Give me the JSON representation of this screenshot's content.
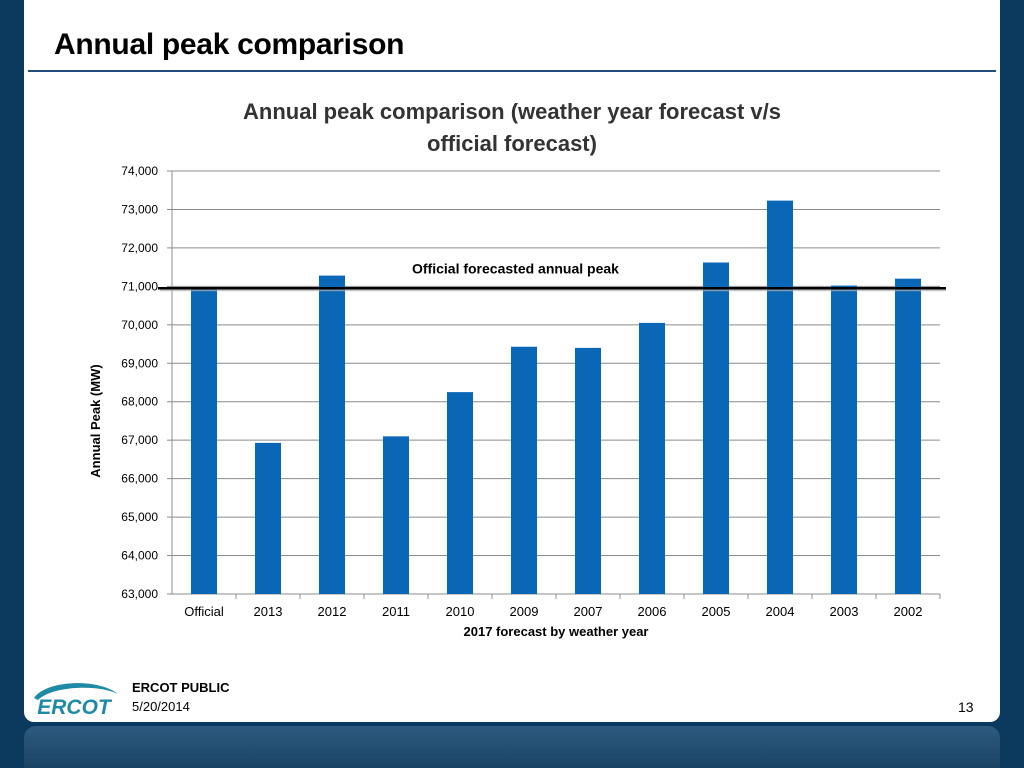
{
  "slide": {
    "title": "Annual peak comparison",
    "footer_public": "ERCOT PUBLIC",
    "footer_date": "5/20/2014",
    "page_number": "13",
    "logo_text": "ERCOT"
  },
  "colors": {
    "bar": "#0a67b8",
    "background": "#0b3a5e",
    "logo": "#1f8aa6"
  },
  "chart_data": {
    "type": "bar",
    "title_lines": [
      "Annual peak comparison (weather year forecast v/s",
      "official forecast)"
    ],
    "xlabel": "2017 forecast by weather year",
    "ylabel": "Annual Peak (MW)",
    "ylim": [
      63000,
      74000
    ],
    "yticks": [
      63000,
      64000,
      65000,
      66000,
      67000,
      68000,
      69000,
      70000,
      71000,
      72000,
      73000,
      74000
    ],
    "ytick_labels": [
      "63,000",
      "64,000",
      "65,000",
      "66,000",
      "67,000",
      "68,000",
      "69,000",
      "70,000",
      "71,000",
      "72,000",
      "73,000",
      "74,000"
    ],
    "grid": true,
    "categories": [
      "Official",
      "2013",
      "2012",
      "2011",
      "2010",
      "2009",
      "2007",
      "2006",
      "2005",
      "2004",
      "2003",
      "2002"
    ],
    "values": [
      70950,
      66930,
      71280,
      67100,
      68250,
      69430,
      69400,
      70050,
      71620,
      73230,
      71020,
      71200
    ],
    "reference_line": {
      "value": 70950,
      "label": "Official forecasted annual peak"
    }
  }
}
